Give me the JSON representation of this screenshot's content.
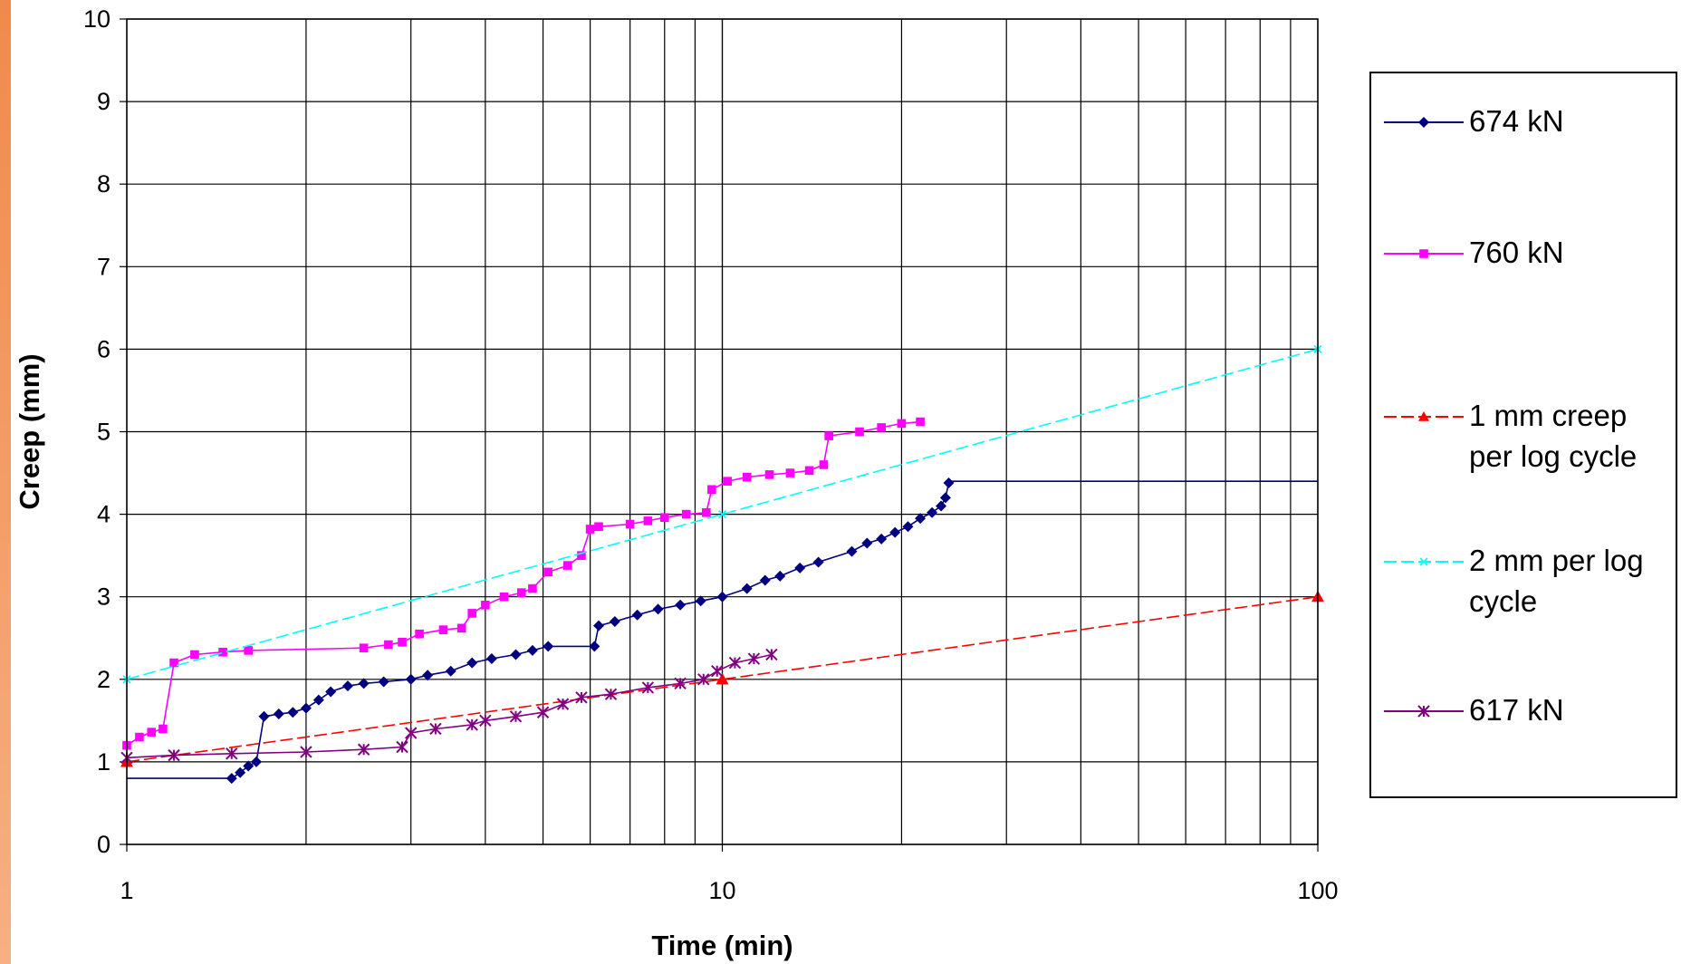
{
  "chart_data": {
    "type": "line",
    "xlabel": "Time (min)",
    "ylabel": "Creep (mm)",
    "xscale": "log",
    "xlim": [
      1,
      100
    ],
    "ylim": [
      0,
      10
    ],
    "x_ticks": [
      1,
      10,
      100
    ],
    "x_tick_labels": [
      "1",
      "10",
      "100"
    ],
    "y_ticks": [
      0,
      1,
      2,
      3,
      4,
      5,
      6,
      7,
      8,
      9,
      10
    ],
    "y_tick_labels": [
      "0",
      "1",
      "2",
      "3",
      "4",
      "5",
      "6",
      "7",
      "8",
      "9",
      "10"
    ],
    "grid": true,
    "legend_position": "right",
    "series": [
      {
        "name": "674 kN",
        "color": "#000080",
        "marker": "diamond",
        "line_only": [
          [
            1,
            0.8
          ],
          [
            1.5,
            0.8
          ]
        ],
        "tail": [
          [
            24,
            4.4
          ],
          [
            100,
            4.4
          ]
        ],
        "points": [
          [
            1.5,
            0.8
          ],
          [
            1.55,
            0.87
          ],
          [
            1.6,
            0.95
          ],
          [
            1.65,
            1.0
          ],
          [
            1.7,
            1.55
          ],
          [
            1.8,
            1.58
          ],
          [
            1.9,
            1.6
          ],
          [
            2.0,
            1.65
          ],
          [
            2.1,
            1.75
          ],
          [
            2.2,
            1.85
          ],
          [
            2.35,
            1.92
          ],
          [
            2.5,
            1.95
          ],
          [
            2.7,
            1.97
          ],
          [
            3.0,
            2.0
          ],
          [
            3.2,
            2.05
          ],
          [
            3.5,
            2.1
          ],
          [
            3.8,
            2.2
          ],
          [
            4.1,
            2.25
          ],
          [
            4.5,
            2.3
          ],
          [
            4.8,
            2.35
          ],
          [
            5.1,
            2.4
          ],
          [
            6.1,
            2.4
          ],
          [
            6.2,
            2.65
          ],
          [
            6.6,
            2.7
          ],
          [
            7.2,
            2.78
          ],
          [
            7.8,
            2.85
          ],
          [
            8.5,
            2.9
          ],
          [
            9.2,
            2.95
          ],
          [
            10,
            3.0
          ],
          [
            11,
            3.1
          ],
          [
            11.8,
            3.2
          ],
          [
            12.5,
            3.25
          ],
          [
            13.5,
            3.35
          ],
          [
            14.5,
            3.42
          ],
          [
            16.5,
            3.55
          ],
          [
            17.5,
            3.65
          ],
          [
            18.5,
            3.7
          ],
          [
            19.5,
            3.78
          ],
          [
            20.5,
            3.85
          ],
          [
            21.5,
            3.95
          ],
          [
            22.5,
            4.02
          ],
          [
            23.3,
            4.1
          ],
          [
            23.7,
            4.2
          ],
          [
            24,
            4.38
          ]
        ]
      },
      {
        "name": "760 kN",
        "color": "#ff00ff",
        "marker": "square",
        "line_only": [],
        "tail": [],
        "points": [
          [
            1.0,
            1.2
          ],
          [
            1.05,
            1.3
          ],
          [
            1.1,
            1.36
          ],
          [
            1.15,
            1.4
          ],
          [
            1.2,
            2.2
          ],
          [
            1.3,
            2.3
          ],
          [
            1.45,
            2.33
          ],
          [
            1.6,
            2.35
          ],
          [
            2.5,
            2.38
          ],
          [
            2.75,
            2.42
          ],
          [
            2.9,
            2.45
          ],
          [
            3.1,
            2.55
          ],
          [
            3.4,
            2.6
          ],
          [
            3.65,
            2.62
          ],
          [
            3.8,
            2.8
          ],
          [
            4.0,
            2.9
          ],
          [
            4.3,
            3.0
          ],
          [
            4.6,
            3.05
          ],
          [
            4.8,
            3.1
          ],
          [
            5.1,
            3.3
          ],
          [
            5.5,
            3.38
          ],
          [
            5.8,
            3.5
          ],
          [
            6.0,
            3.82
          ],
          [
            6.2,
            3.85
          ],
          [
            7.0,
            3.88
          ],
          [
            7.5,
            3.92
          ],
          [
            8.0,
            3.96
          ],
          [
            8.7,
            4.0
          ],
          [
            9.4,
            4.02
          ],
          [
            9.6,
            4.3
          ],
          [
            10.2,
            4.4
          ],
          [
            11,
            4.45
          ],
          [
            12,
            4.48
          ],
          [
            13,
            4.5
          ],
          [
            14,
            4.53
          ],
          [
            14.8,
            4.6
          ],
          [
            15.1,
            4.95
          ],
          [
            17,
            5.0
          ],
          [
            18.5,
            5.05
          ],
          [
            20,
            5.1
          ],
          [
            21.5,
            5.12
          ]
        ]
      },
      {
        "name": "1 mm creep per log cycle",
        "color": "#ff0000",
        "marker": "triangle",
        "line_only": [],
        "tail": [],
        "dashed": true,
        "points": [
          [
            1,
            1.0
          ],
          [
            10,
            2.0
          ],
          [
            100,
            3.0
          ]
        ]
      },
      {
        "name": "2 mm per log cycle",
        "color": "#00ffff",
        "marker": "x",
        "line_only": [],
        "tail": [],
        "dashed": true,
        "points": [
          [
            1,
            2.0
          ],
          [
            10,
            4.0
          ],
          [
            100,
            6.0
          ]
        ]
      },
      {
        "name": "617 kN",
        "color": "#800080",
        "marker": "star",
        "line_only": [],
        "tail": [],
        "points": [
          [
            1.0,
            1.05
          ],
          [
            1.2,
            1.08
          ],
          [
            1.5,
            1.1
          ],
          [
            2.0,
            1.12
          ],
          [
            2.5,
            1.15
          ],
          [
            2.9,
            1.18
          ],
          [
            3.0,
            1.35
          ],
          [
            3.3,
            1.4
          ],
          [
            3.8,
            1.45
          ],
          [
            4.0,
            1.5
          ],
          [
            4.5,
            1.55
          ],
          [
            5.0,
            1.6
          ],
          [
            5.4,
            1.7
          ],
          [
            5.8,
            1.78
          ],
          [
            6.5,
            1.82
          ],
          [
            7.5,
            1.9
          ],
          [
            8.5,
            1.95
          ],
          [
            9.3,
            2.0
          ],
          [
            9.8,
            2.1
          ],
          [
            10.5,
            2.2
          ],
          [
            11.3,
            2.25
          ],
          [
            12.1,
            2.3
          ]
        ]
      }
    ]
  }
}
